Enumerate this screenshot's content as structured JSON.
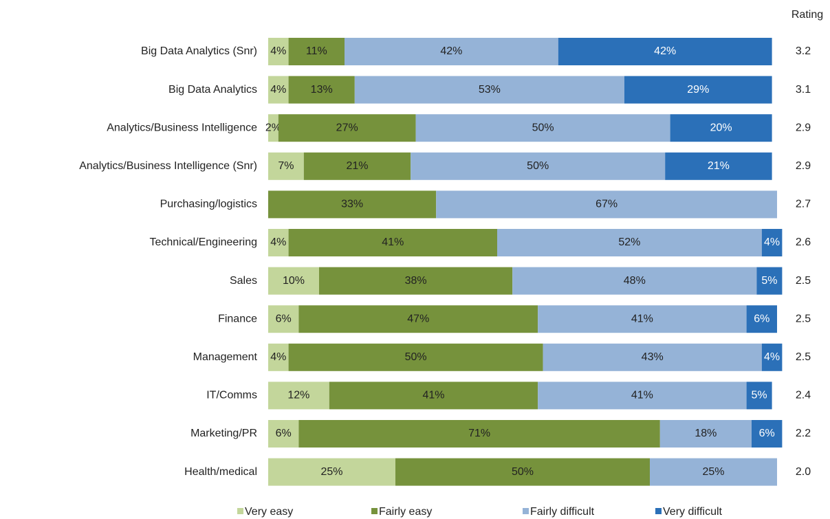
{
  "chart_data": {
    "type": "stacked_barh",
    "categories": [
      "Big Data Analytics (Snr)",
      "Big Data Analytics",
      "Analytics/Business Intelligence",
      "Analytics/Business Intelligence (Snr)",
      "Purchasing/logistics",
      "Technical/Engineering",
      "Sales",
      "Finance",
      "Management",
      "IT/Comms",
      "Marketing/PR",
      "Health/medical"
    ],
    "xlim": [
      0,
      100
    ],
    "series": [
      {
        "name": "Very easy",
        "color": "#c3d69b",
        "label_color": "#222222",
        "values": [
          4,
          4,
          2,
          7,
          null,
          4,
          10,
          6,
          4,
          12,
          6,
          25
        ],
        "value_labels": [
          "4%",
          "4%",
          "2%",
          "7%",
          null,
          "4%",
          "10%",
          "6%",
          "4%",
          "12%",
          "6%",
          "25%"
        ]
      },
      {
        "name": "Fairly easy",
        "color": "#76923c",
        "label_color": "#222222",
        "values": [
          11,
          13,
          27,
          21,
          33,
          41,
          38,
          47,
          50,
          41,
          71,
          50
        ],
        "value_labels": [
          "11%",
          "13%",
          "27%",
          "21%",
          "33%",
          "41%",
          "38%",
          "47%",
          "50%",
          "41%",
          "71%",
          "50%"
        ]
      },
      {
        "name": "Fairly difficult",
        "color": "#95b3d7",
        "label_color": "#222222",
        "values": [
          42,
          53,
          50,
          50,
          67,
          52,
          48,
          41,
          43,
          41,
          18,
          25
        ],
        "value_labels": [
          "42%",
          "53%",
          "50%",
          "50%",
          "67%",
          "52%",
          "48%",
          "41%",
          "43%",
          "41%",
          "18%",
          "25%"
        ]
      },
      {
        "name": "Very difficult",
        "color": "#2b70b8",
        "label_color": "#ffffff",
        "values": [
          42,
          29,
          20,
          21,
          null,
          4,
          5,
          6,
          4,
          5,
          6,
          null
        ],
        "value_labels": [
          "42%",
          "29%",
          "20%",
          "21%",
          null,
          "4%",
          "5%",
          "6%",
          "4%",
          "5%",
          "6%",
          null
        ]
      }
    ],
    "rating": {
      "name": "Rating",
      "values": [
        3.2,
        3.1,
        2.9,
        2.9,
        2.7,
        2.6,
        2.5,
        2.5,
        2.5,
        2.4,
        2.2,
        2.0
      ],
      "value_labels": [
        "3.2",
        "3.1",
        "2.9",
        "2.9",
        "2.7",
        "2.6",
        "2.5",
        "2.5",
        "2.5",
        "2.4",
        "2.2",
        "2.0"
      ]
    }
  }
}
